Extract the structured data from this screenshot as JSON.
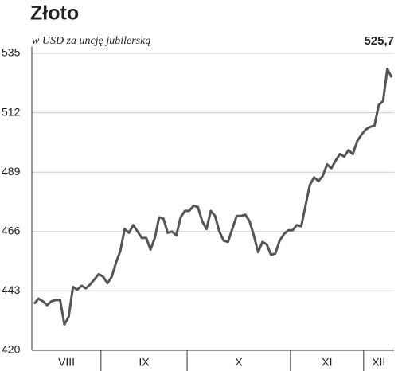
{
  "chart_data": {
    "type": "line",
    "title": "Złoto",
    "subtitle": "w USD za uncję jubilerską",
    "categories": [
      "VIII",
      "VIII",
      "VIII",
      "VIII",
      "VIII",
      "VIII",
      "VIII",
      "VIII",
      "VIII",
      "VIII",
      "VIII",
      "VIII",
      "VIII",
      "VIII",
      "VIII",
      "VIII",
      "IX",
      "IX",
      "IX",
      "IX",
      "IX",
      "IX",
      "IX",
      "IX",
      "IX",
      "IX",
      "IX",
      "IX",
      "IX",
      "IX",
      "IX",
      "IX",
      "IX",
      "IX",
      "IX",
      "IX",
      "X",
      "X",
      "X",
      "X",
      "X",
      "X",
      "X",
      "X",
      "X",
      "X",
      "X",
      "X",
      "X",
      "X",
      "X",
      "X",
      "X",
      "X",
      "X",
      "X",
      "X",
      "X",
      "X",
      "X",
      "XI",
      "XI",
      "XI",
      "XI",
      "XI",
      "XI",
      "XI",
      "XI",
      "XI",
      "XI",
      "XI",
      "XI",
      "XI",
      "XI",
      "XI",
      "XI",
      "XI",
      "XII",
      "XII",
      "XII",
      "XII",
      "XII",
      "XII",
      "XII"
    ],
    "values": [
      438,
      440,
      439,
      437.5,
      439,
      439.5,
      439.5,
      430,
      433,
      444.5,
      443.5,
      445,
      444,
      445.5,
      447.5,
      449.5,
      448.5,
      446,
      448.5,
      454,
      458.5,
      467,
      465.5,
      468.5,
      466,
      463.5,
      463.5,
      459,
      463.5,
      471.5,
      471,
      465.5,
      466,
      464.5,
      471.5,
      474,
      474,
      476,
      475.5,
      470,
      467,
      474,
      472,
      466,
      462.5,
      462,
      467,
      472,
      472,
      472.5,
      470,
      464.5,
      458,
      462,
      461,
      457,
      457.5,
      462.5,
      465,
      466.5,
      466.5,
      468.5,
      468,
      476,
      484,
      487,
      485.5,
      487.5,
      492,
      490.5,
      493.5,
      496,
      495,
      497.5,
      496,
      501,
      503.5,
      505.5,
      506.5,
      507,
      515,
      516.5,
      529,
      525.7
    ],
    "value_labels": [
      null,
      null,
      null,
      null,
      null,
      null,
      null,
      null,
      null,
      null,
      null,
      null,
      null,
      null,
      null,
      null,
      null,
      null,
      null,
      null,
      null,
      null,
      null,
      null,
      null,
      null,
      null,
      null,
      null,
      null,
      null,
      null,
      null,
      null,
      null,
      null,
      null,
      null,
      null,
      null,
      null,
      null,
      null,
      null,
      null,
      null,
      null,
      null,
      null,
      null,
      null,
      null,
      null,
      null,
      null,
      null,
      null,
      null,
      null,
      null,
      null,
      null,
      null,
      null,
      null,
      null,
      null,
      null,
      null,
      null,
      null,
      null,
      null,
      null,
      null,
      null,
      null,
      null,
      null,
      null,
      null,
      null,
      null,
      "525,7"
    ],
    "color": "#555555",
    "ylim": [
      420,
      535
    ],
    "yticks": [
      420,
      443,
      466,
      489,
      512,
      535
    ],
    "grid": true
  }
}
